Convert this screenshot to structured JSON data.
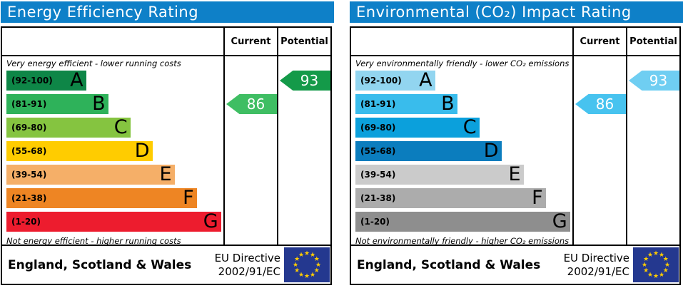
{
  "chart_data": [
    {
      "type": "bar",
      "title": "Energy Efficiency Rating",
      "categories": [
        "A (92-100)",
        "B (81-91)",
        "C (69-80)",
        "D (55-68)",
        "E (39-54)",
        "F (21-38)",
        "G (1-20)"
      ],
      "band_colors": [
        "#0E8647",
        "#2EB25A",
        "#85C440",
        "#FFCC00",
        "#F5AF68",
        "#EE8523",
        "#ED1C2E"
      ],
      "current": 86,
      "current_band": "B",
      "potential": 93,
      "potential_band": "A",
      "xlim": [
        1,
        100
      ],
      "note_top": "Very energy efficient - lower running costs",
      "note_bottom": "Not energy efficient - higher running costs"
    },
    {
      "type": "bar",
      "title": "Environmental (CO₂) Impact Rating",
      "categories": [
        "A (92-100)",
        "B (81-91)",
        "C (69-80)",
        "D (55-68)",
        "E (39-54)",
        "F (21-38)",
        "G (1-20)"
      ],
      "band_colors": [
        "#92D5F0",
        "#39BCEC",
        "#0BA0DC",
        "#0B7DBE",
        "#CBCBCB",
        "#ACACAC",
        "#8E8E8E"
      ],
      "current": 86,
      "current_band": "B",
      "potential": 93,
      "potential_band": "A",
      "xlim": [
        1,
        100
      ],
      "note_top": "Very environmentally friendly - lower CO₂ emissions",
      "note_bottom": "Not environmentally friendly - higher CO₂ emissions"
    }
  ],
  "charts": [
    {
      "title": "Energy Efficiency Rating",
      "columns": {
        "current": "Current",
        "potential": "Potential"
      },
      "caption_top": "Very energy efficient - lower running costs",
      "caption_bottom": "Not energy efficient - higher running costs",
      "bands": [
        {
          "range": "(92-100)",
          "letter": "A",
          "color": "#0E8647",
          "width": "36%"
        },
        {
          "range": "(81-91)",
          "letter": "B",
          "color": "#2EB25A",
          "width": "46%"
        },
        {
          "range": "(69-80)",
          "letter": "C",
          "color": "#85C440",
          "width": "56%"
        },
        {
          "range": "(55-68)",
          "letter": "D",
          "color": "#FFCC00",
          "width": "66%"
        },
        {
          "range": "(39-54)",
          "letter": "E",
          "color": "#F5AF68",
          "width": "76%"
        },
        {
          "range": "(21-38)",
          "letter": "F",
          "color": "#EE8523",
          "width": "86%"
        },
        {
          "range": "(1-20)",
          "letter": "G",
          "color": "#ED1C2E",
          "width": "97%"
        }
      ],
      "current": {
        "value": "86",
        "color": "#3FBE63",
        "band": "B"
      },
      "potential": {
        "value": "93",
        "color": "#149A49",
        "band": "A"
      },
      "footer": {
        "region": "England, Scotland & Wales",
        "directive_line1": "EU Directive",
        "directive_line2": "2002/91/EC"
      }
    },
    {
      "title": "Environmental (CO₂) Impact Rating",
      "columns": {
        "current": "Current",
        "potential": "Potential"
      },
      "caption_top": "Very environmentally friendly - lower CO₂ emissions",
      "caption_bottom": "Not environmentally friendly - higher CO₂ emissions",
      "bands": [
        {
          "range": "(92-100)",
          "letter": "A",
          "color": "#92D5F0",
          "width": "36%"
        },
        {
          "range": "(81-91)",
          "letter": "B",
          "color": "#39BCEC",
          "width": "46%"
        },
        {
          "range": "(69-80)",
          "letter": "C",
          "color": "#0BA0DC",
          "width": "56%"
        },
        {
          "range": "(55-68)",
          "letter": "D",
          "color": "#0B7DBE",
          "width": "66%"
        },
        {
          "range": "(39-54)",
          "letter": "E",
          "color": "#CBCBCB",
          "width": "76%"
        },
        {
          "range": "(21-38)",
          "letter": "F",
          "color": "#ACACAC",
          "width": "86%"
        },
        {
          "range": "(1-20)",
          "letter": "G",
          "color": "#8E8E8E",
          "width": "97%"
        }
      ],
      "current": {
        "value": "86",
        "color": "#47C3EF",
        "band": "B"
      },
      "potential": {
        "value": "93",
        "color": "#6FCEF2",
        "band": "A"
      },
      "footer": {
        "region": "England, Scotland & Wales",
        "directive_line1": "EU Directive",
        "directive_line2": "2002/91/EC"
      }
    }
  ]
}
